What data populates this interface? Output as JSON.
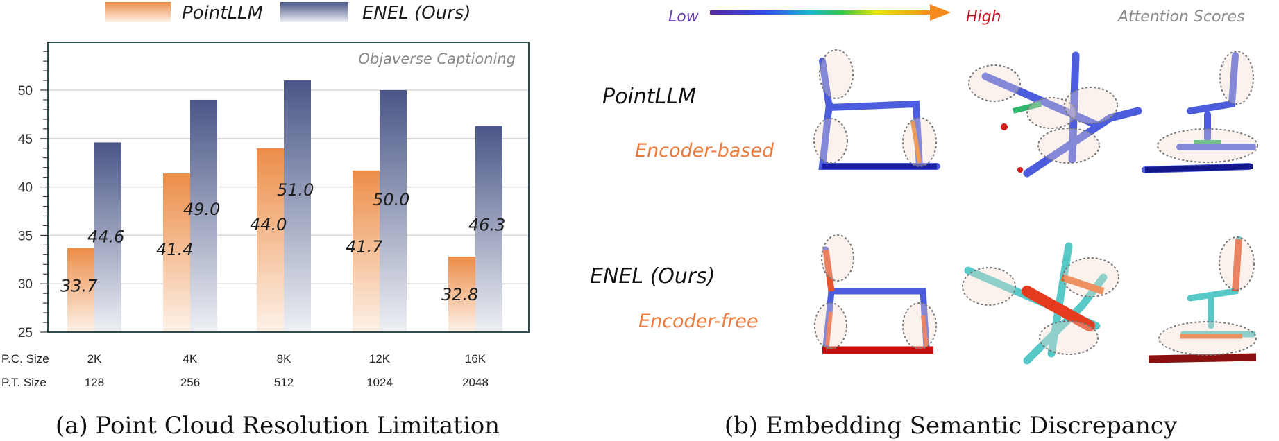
{
  "legend": {
    "series_a": "PointLLM",
    "series_b": "ENEL (Ours)"
  },
  "chart_data": {
    "type": "bar",
    "categories": [
      "2K",
      "4K",
      "8K",
      "12K",
      "16K"
    ],
    "row_labels": {
      "pc_size": "P.C. Size",
      "pt_size": "P.T. Size"
    },
    "pt_sizes": [
      "128",
      "256",
      "512",
      "1024",
      "2048"
    ],
    "series": [
      {
        "name": "PointLLM",
        "values": [
          33.7,
          41.4,
          44.0,
          41.7,
          32.8
        ],
        "color": "#ec8f4c"
      },
      {
        "name": "ENEL (Ours)",
        "values": [
          44.6,
          49.0,
          51.0,
          50.0,
          46.3
        ],
        "color": "#4c5889"
      }
    ],
    "data_labels": {
      "PointLLM": [
        "33.7",
        "41.4",
        "44.0",
        "41.7",
        "32.8"
      ],
      "ENEL (Ours)": [
        "44.6",
        "49.0",
        "51.0",
        "50.0",
        "46.3"
      ]
    },
    "yticks": [
      "25",
      "30",
      "35",
      "40",
      "45",
      "50"
    ],
    "ylim": [
      25,
      55
    ],
    "grid": true,
    "annotation": "Objaverse Captioning",
    "caption": "(a) Point Cloud Resolution Limitation"
  },
  "panel_b": {
    "scale_low": "Low",
    "scale_high": "High",
    "scale_title": "Attention Scores",
    "row1_label": "PointLLM",
    "row1_sub": "Encoder-based",
    "row2_label": "ENEL (Ours)",
    "row2_sub": "Encoder-free",
    "caption": "(b) Embedding Semantic Discrepancy"
  }
}
